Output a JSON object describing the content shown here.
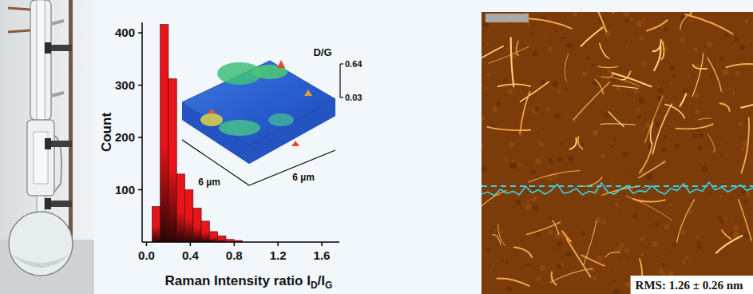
{
  "chart_data": {
    "type": "histogram",
    "y_label": "Count",
    "x_label": [
      {
        "text": "Raman Intensity ratio I",
        "sub": false
      },
      {
        "text": "D",
        "sub": true
      },
      {
        "text": "/I",
        "sub": false
      },
      {
        "text": "G",
        "sub": true
      }
    ],
    "bins": [
      0.05,
      0.125,
      0.2,
      0.275,
      0.35,
      0.425,
      0.5,
      0.575,
      0.65,
      0.725,
      0.8,
      0.875
    ],
    "counts": [
      68,
      416,
      312,
      130,
      100,
      65,
      40,
      20,
      12,
      5,
      3
    ],
    "color": "#e8141a",
    "xlim": [
      -0.04,
      1.76
    ],
    "xticks": [
      {
        "value": 0,
        "label": "0.0"
      },
      {
        "value": 0.4,
        "label": "0.4"
      },
      {
        "value": 0.8,
        "label": "0.8"
      },
      {
        "value": 1.2,
        "label": "1.2"
      },
      {
        "value": 1.6,
        "label": "1.6"
      }
    ],
    "ylim": [
      0,
      420
    ],
    "yticks": [
      100,
      200,
      300,
      400
    ],
    "grid": false,
    "inset": {
      "type": "surface",
      "z_label": "D/G",
      "zlim": [
        0.03,
        0.64
      ],
      "zticks": [
        0.64,
        0.03
      ],
      "x_label": "6 µm",
      "y_label": "6 µm"
    }
  },
  "afm_image": {
    "rms_label": "RMS: 1.26 ± 0.26 nm",
    "height_profile_nm": [
      0.8,
      1.1,
      0.6,
      1.5,
      0.9,
      1.2,
      0.7,
      1.9,
      1.0,
      1.4,
      0.8,
      1.3,
      2.2,
      0.9,
      1.1,
      1.6,
      0.7,
      1.2,
      1.0,
      2.4,
      1.1,
      0.8,
      1.5,
      1.9,
      0.9,
      1.3,
      1.1,
      2.0,
      1.2,
      0.8,
      1.6,
      1.3,
      2.3,
      1.0,
      1.5,
      1.2,
      2.5,
      1.4,
      1.8,
      1.1,
      1.6,
      2.1,
      1.3,
      1.7
    ]
  }
}
